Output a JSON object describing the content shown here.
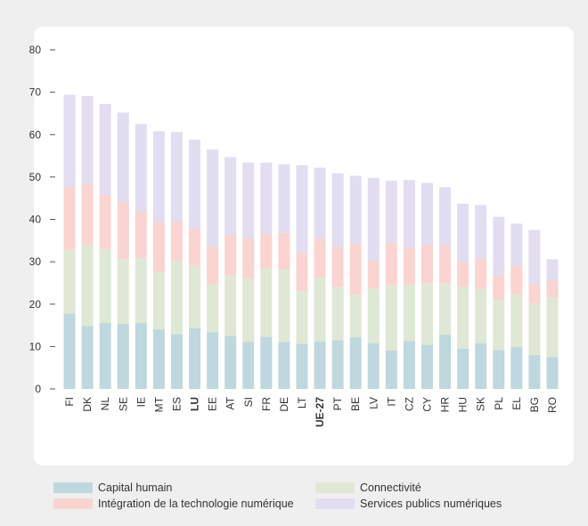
{
  "chart_data": {
    "type": "bar",
    "stacked": true,
    "categories": [
      "FI",
      "DK",
      "NL",
      "SE",
      "IE",
      "MT",
      "ES",
      "LU",
      "EE",
      "AT",
      "SI",
      "FR",
      "DE",
      "LT",
      "UE-27",
      "PT",
      "BE",
      "LV",
      "IT",
      "CZ",
      "CY",
      "HR",
      "HU",
      "SK",
      "PL",
      "EL",
      "BG",
      "RO"
    ],
    "bold_categories": [
      "LU",
      "UE-27"
    ],
    "series": [
      {
        "name": "Capital humain",
        "color": "#bfd7de",
        "values": [
          17.8,
          14.8,
          15.6,
          15.4,
          15.6,
          14.1,
          12.9,
          14.3,
          13.4,
          12.5,
          11.1,
          12.3,
          11.1,
          10.6,
          11.2,
          11.5,
          12.2,
          10.8,
          9.1,
          11.3,
          10.4,
          12.8,
          9.5,
          10.8,
          9.2,
          9.9,
          8.0,
          7.5
        ]
      },
      {
        "name": "Connectivité",
        "color": "#dfe8d4",
        "values": [
          15.0,
          19.2,
          17.4,
          15.2,
          15.3,
          13.4,
          17.4,
          14.9,
          11.2,
          14.3,
          14.9,
          16.0,
          17.0,
          12.5,
          15.0,
          12.6,
          10.0,
          12.9,
          15.4,
          13.3,
          14.5,
          12.1,
          14.5,
          12.8,
          11.8,
          12.4,
          12.2,
          14.1
        ]
      },
      {
        "name": "Intégration de la technologie numérique",
        "color": "#f9d4d0",
        "values": [
          14.8,
          14.3,
          12.8,
          13.5,
          11.0,
          11.9,
          9.3,
          8.7,
          8.9,
          9.5,
          9.6,
          8.4,
          8.7,
          8.9,
          9.2,
          9.4,
          11.9,
          6.5,
          10.0,
          8.7,
          9.1,
          8.9,
          5.8,
          7.2,
          5.8,
          6.8,
          4.5,
          3.9
        ]
      },
      {
        "name": "Services publics numériques",
        "color": "#e2ddf0",
        "values": [
          21.8,
          20.8,
          21.4,
          21.1,
          20.6,
          21.4,
          21.0,
          20.9,
          23.0,
          18.4,
          17.8,
          16.7,
          16.2,
          20.8,
          16.8,
          17.4,
          16.2,
          19.6,
          14.6,
          16.0,
          14.6,
          13.8,
          13.9,
          12.6,
          13.8,
          9.9,
          12.8,
          5.1
        ]
      }
    ],
    "ylim": [
      0,
      80
    ],
    "yticks": [
      0,
      10,
      20,
      30,
      40,
      50,
      60,
      70,
      80
    ],
    "grid": false,
    "legend_position": "bottom"
  }
}
